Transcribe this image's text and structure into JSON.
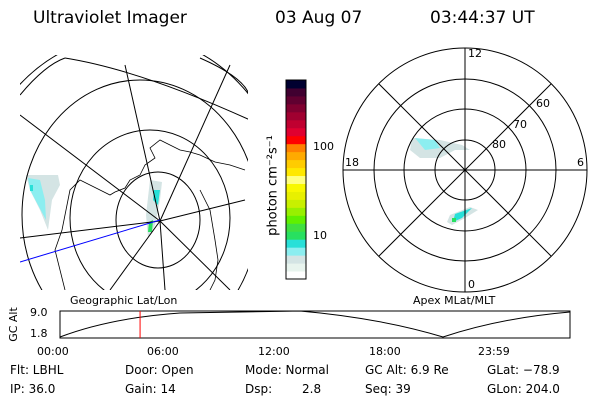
{
  "header": {
    "instrument": "Ultraviolet Imager",
    "date": "03 Aug 07",
    "time": "03:44:37 UT"
  },
  "colorbar": {
    "label": "photon cm⁻²s⁻¹",
    "ticks": [
      "100",
      "10"
    ],
    "colors": [
      "#ffffff",
      "#e8f4ee",
      "#d4e4e4",
      "#8ceef0",
      "#28e0d8",
      "#28e060",
      "#40e040",
      "#60f000",
      "#98f000",
      "#c8f000",
      "#e8f000",
      "#f8f800",
      "#ffff80",
      "#ffe800",
      "#ffcc00",
      "#ffaa00",
      "#ff8000",
      "#ff0000",
      "#e00030",
      "#c00030",
      "#a00030",
      "#800030",
      "#600030",
      "#400030",
      "#000030"
    ]
  },
  "left_panel": {
    "label": "Geographic Lat/Lon"
  },
  "right_panel": {
    "label": "Apex MLat/MLT",
    "mlt_labels": [
      "12",
      "6",
      "0",
      "18"
    ],
    "lat_labels": [
      "60",
      "70",
      "80"
    ]
  },
  "timeline": {
    "ylabel": "GC Alt",
    "yticks": [
      "9.0",
      "1.8"
    ],
    "xticks": [
      "00:00",
      "06:00",
      "12:00",
      "18:00",
      "23:59"
    ],
    "current_time_fraction": 0.157,
    "marker_color": "#ff0000"
  },
  "info": {
    "flt": "Flt: LBHL",
    "ip": "IP: 36.0",
    "door": "Door: Open",
    "gain": "Gain: 14",
    "mode": "Mode: Normal",
    "dsp_label": "Dsp:",
    "dsp_value": "2.8",
    "gc_alt": "GC Alt: 6.9 Re",
    "seq": "Seq: 39",
    "glat": "GLat: −78.9",
    "glon": "GLon: 204.0"
  }
}
